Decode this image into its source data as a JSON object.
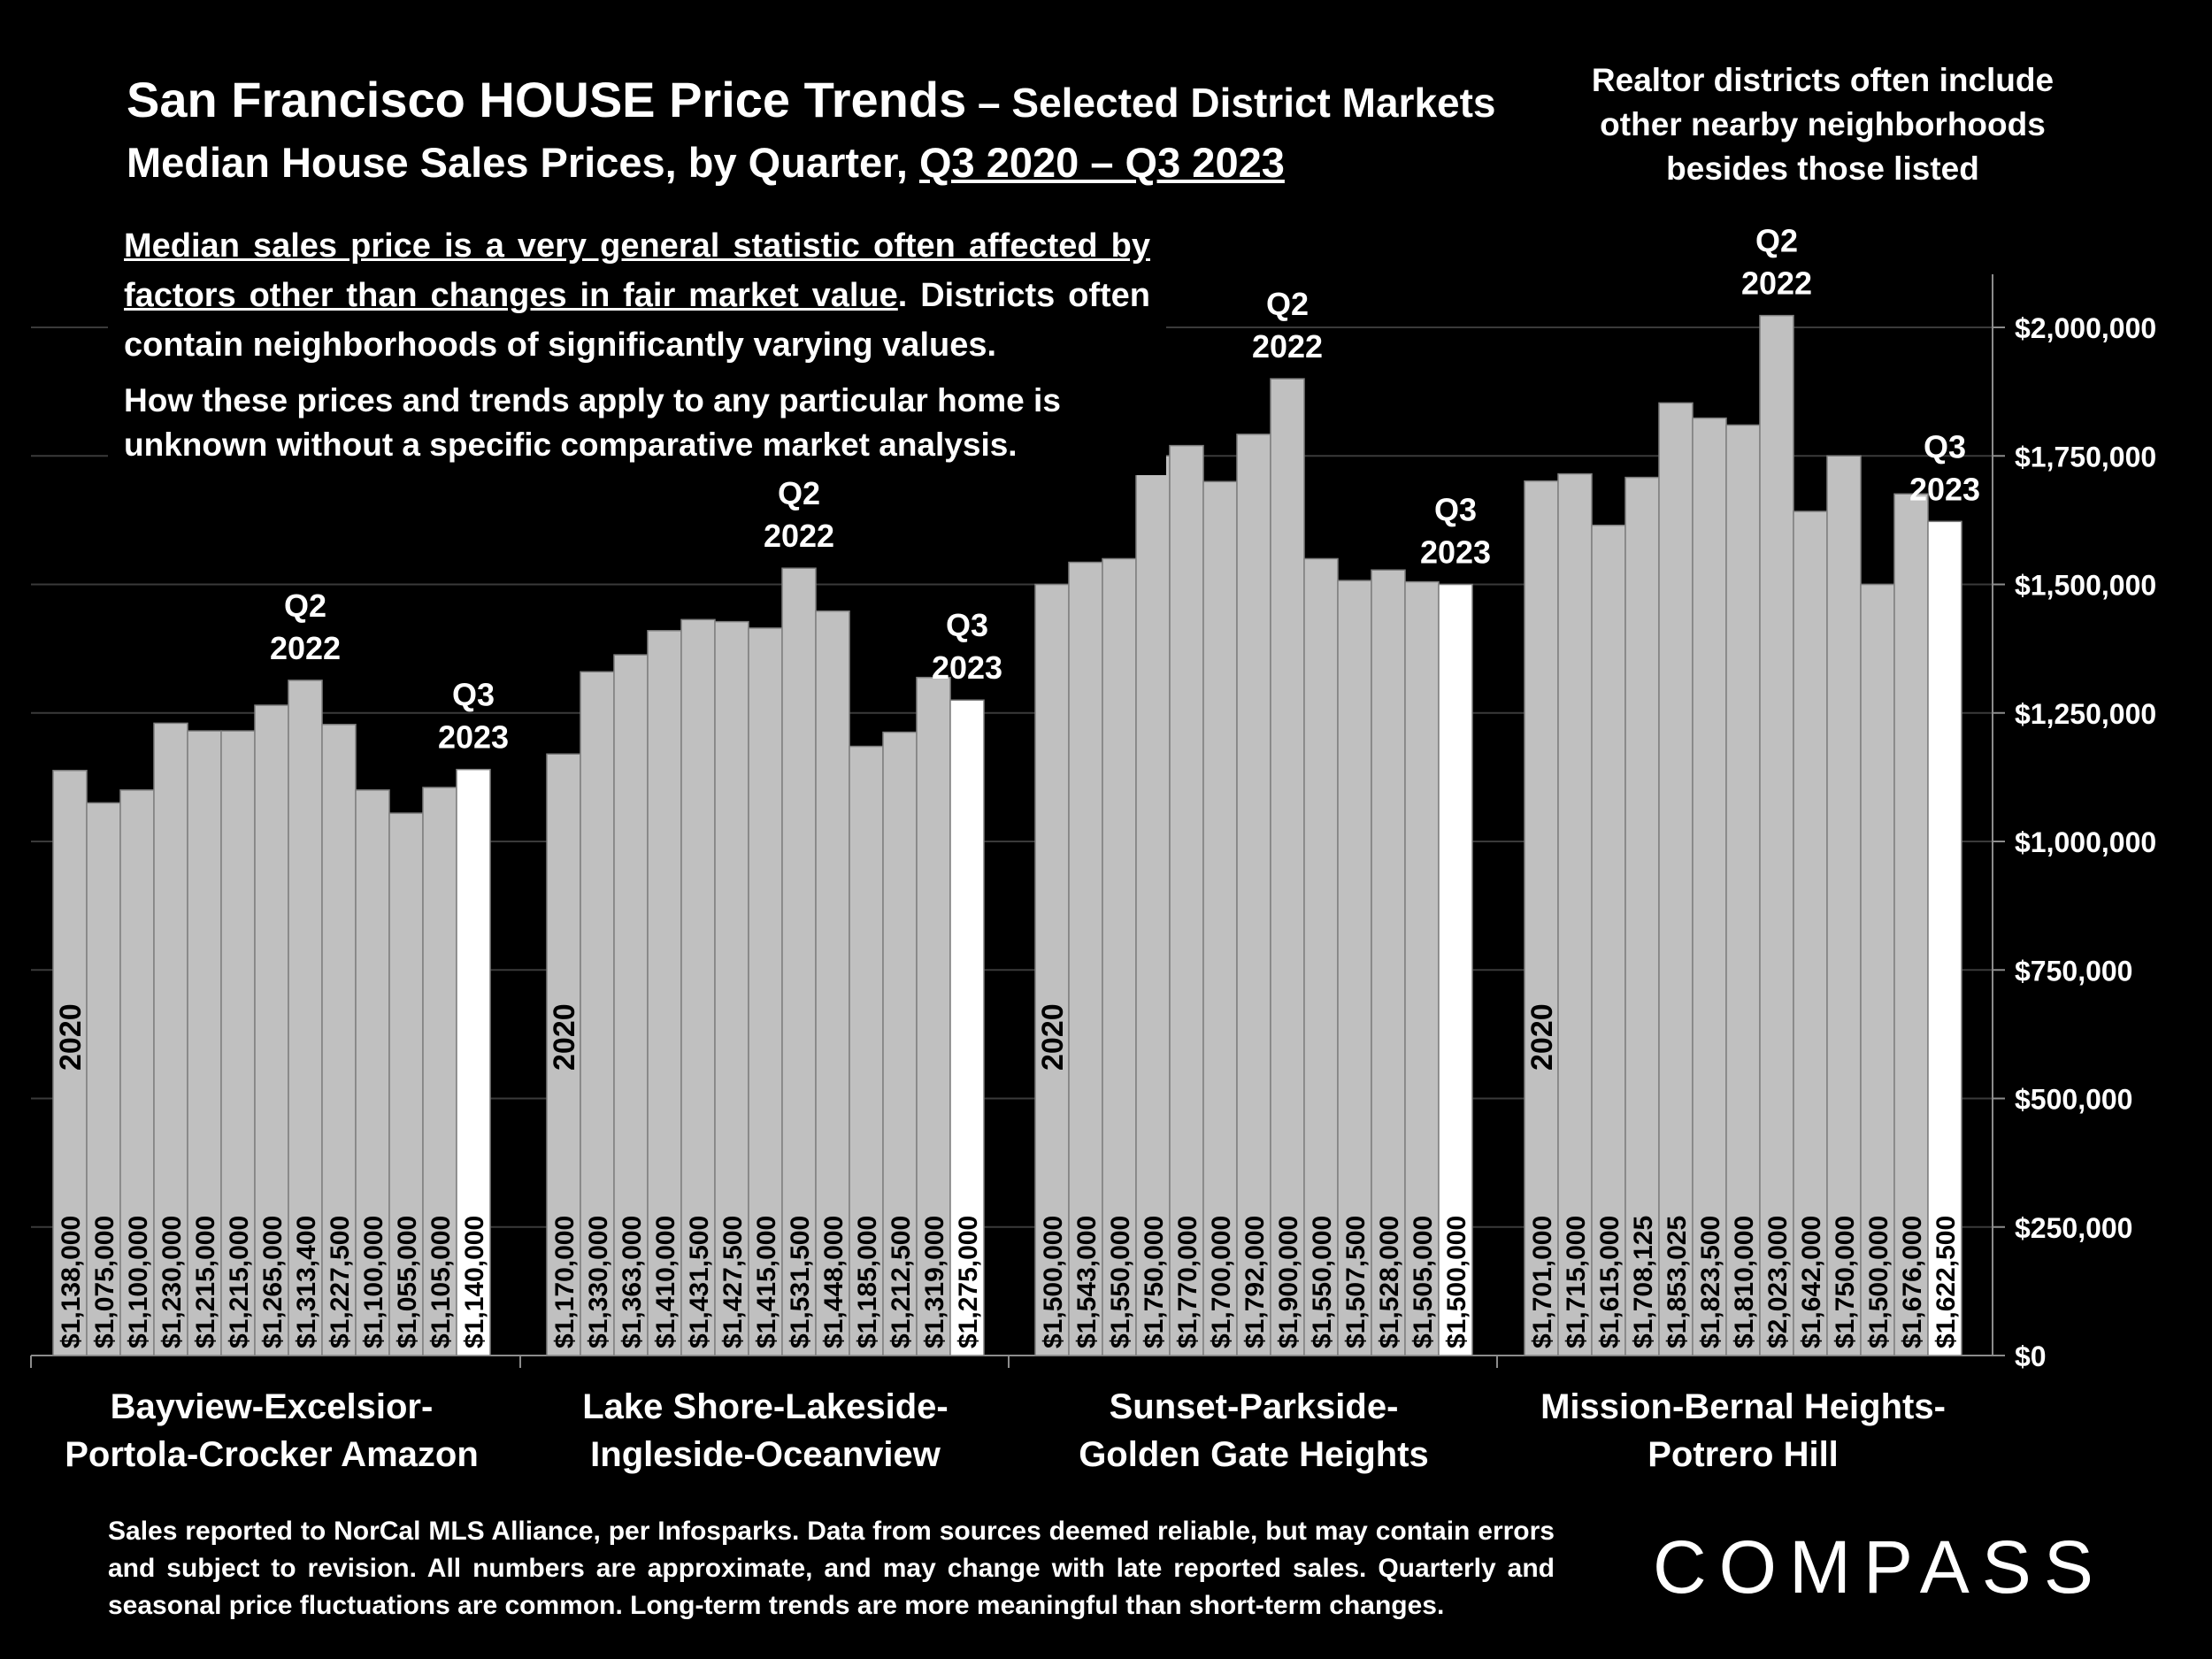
{
  "title": {
    "main": "San Francisco HOUSE Price Trends",
    "subtitle": " – Selected District Markets",
    "line2_prefix": "Median House Sales Prices, by Quarter, ",
    "line2_period": "Q3 2020 – Q3 2023"
  },
  "notes": {
    "realtor": "Realtor districts often include other nearby neighborhoods besides those listed",
    "median_underlined_1": "Median sales price is a very general statistic often affected by factors other than changes in fair market value",
    "median_rest": ". Districts often contain neighborhoods of significantly varying values.",
    "how": "How these prices and trends apply to any particular home is unknown without a specific comparative market analysis."
  },
  "footer": "Sales reported to NorCal MLS Alliance, per Infosparks. Data from sources deemed reliable, but may contain errors and subject to revision. All numbers are approximate, and may change with late reported sales. Quarterly and seasonal price fluctuations are common. Long-term trends are more meaningful than short-term changes.",
  "logo": "COMPASS",
  "colors": {
    "background": "#000000",
    "bar": "#c0c0c0",
    "bar_latest": "#ffffff",
    "bar_border": "#7f7f7f",
    "grid": "#3a3a3a",
    "axis": "#8c8c8c",
    "text": "#ffffff",
    "value_label": "#000000"
  },
  "chart_data": {
    "type": "bar",
    "ylim": [
      0,
      2100000
    ],
    "y_ticks": [
      0,
      250000,
      500000,
      750000,
      1000000,
      1250000,
      1500000,
      1750000,
      2000000
    ],
    "y_tick_labels": [
      "$0",
      "$250,000",
      "$500,000",
      "$750,000",
      "$1,000,000",
      "$1,250,000",
      "$1,500,000",
      "$1,750,000",
      "$2,000,000"
    ],
    "y_axis_position": "right",
    "grid": true,
    "groups": [
      {
        "name": "Bayview-Excelsior-Portola-Crocker Amazon",
        "name_lines": [
          "Bayview-Excelsior-",
          "Portola-Crocker Amazon"
        ],
        "values": [
          1138000,
          1075000,
          1100000,
          1230000,
          1215000,
          1215000,
          1265000,
          1313400,
          1227500,
          1100000,
          1055000,
          1105000,
          1140000
        ],
        "labels": [
          "$1,138,000",
          "$1,075,000",
          "$1,100,000",
          "$1,230,000",
          "$1,215,000",
          "$1,215,000",
          "$1,265,000",
          "$1,313,400",
          "$1,227,500",
          "$1,100,000",
          "$1,055,000",
          "$1,105,000",
          "$1,140,000"
        ]
      },
      {
        "name": "Lake Shore-Lakeside-Ingleside-Oceanview",
        "name_lines": [
          "Lake Shore-Lakeside-",
          "Ingleside-Oceanview"
        ],
        "values": [
          1170000,
          1330000,
          1363000,
          1410000,
          1431500,
          1427500,
          1415000,
          1531500,
          1448000,
          1185000,
          1212500,
          1319000,
          1275000
        ],
        "labels": [
          "$1,170,000",
          "$1,330,000",
          "$1,363,000",
          "$1,410,000",
          "$1,431,500",
          "$1,427,500",
          "$1,415,000",
          "$1,531,500",
          "$1,448,000",
          "$1,185,000",
          "$1,212,500",
          "$1,319,000",
          "$1,275,000"
        ]
      },
      {
        "name": "Sunset-Parkside-Golden Gate Heights",
        "name_lines": [
          "Sunset-Parkside-",
          "Golden Gate Heights"
        ],
        "values": [
          1500000,
          1543000,
          1550000,
          1750000,
          1770000,
          1700000,
          1792000,
          1900000,
          1550000,
          1507500,
          1528000,
          1505000,
          1500000
        ],
        "labels": [
          "$1,500,000",
          "$1,543,000",
          "$1,550,000",
          "$1,750,000",
          "$1,770,000",
          "$1,700,000",
          "$1,792,000",
          "$1,900,000",
          "$1,550,000",
          "$1,507,500",
          "$1,528,000",
          "$1,505,000",
          "$1,500,000"
        ]
      },
      {
        "name": "Mission-Bernal Heights-Potrero Hill",
        "name_lines": [
          "Mission-Bernal Heights-",
          "Potrero Hill"
        ],
        "values": [
          1701000,
          1715000,
          1615000,
          1708125,
          1853025,
          1823500,
          1810000,
          2023000,
          1642000,
          1750000,
          1500000,
          1676000,
          1622500
        ],
        "labels": [
          "$1,701,000",
          "$1,715,000",
          "$1,615,000",
          "$1,708,125",
          "$1,853,025",
          "$1,823,500",
          "$1,810,000",
          "$2,023,000",
          "$1,642,000",
          "$1,750,000",
          "$1,500,000",
          "$1,676,000",
          "$1,622,500"
        ]
      }
    ],
    "annotations": {
      "first_bar": "2020",
      "peak": [
        "Q2",
        "2022"
      ],
      "latest": [
        "Q3",
        "2023"
      ],
      "peak_index": 7,
      "latest_index": 12
    }
  }
}
